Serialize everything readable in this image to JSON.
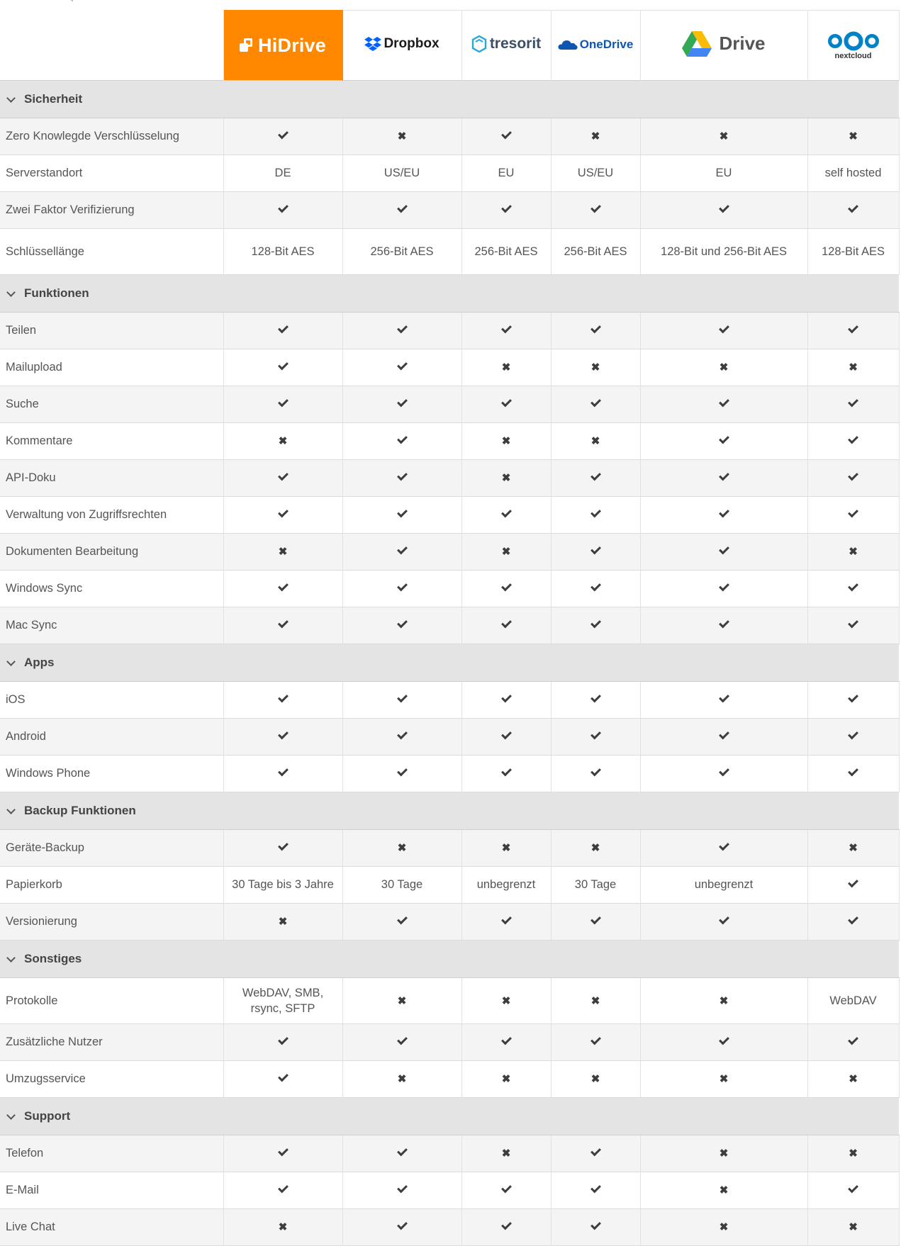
{
  "colors": {
    "hidrive_orange": "#ff8800",
    "section_bg": "#e4e4e4",
    "alt_row_bg": "#f4f4f4",
    "dropbox_blue": "#0061fe",
    "tresorit_cyan": "#28a7d8",
    "onedrive_blue": "#0f56b3",
    "nextcloud_blue": "#0082c9"
  },
  "providers": [
    {
      "key": "hidrive",
      "name": "HiDrive",
      "icon": "hidrive-logo-icon"
    },
    {
      "key": "dropbox",
      "name": "Dropbox",
      "icon": "dropbox-logo-icon"
    },
    {
      "key": "tresorit",
      "name": "tresorit",
      "icon": "tresorit-logo-icon"
    },
    {
      "key": "onedrive",
      "name": "OneDrive",
      "icon": "onedrive-cloud-icon"
    },
    {
      "key": "drive",
      "name": "Drive",
      "icon": "google-drive-triangle-icon"
    },
    {
      "key": "nextcloud",
      "name": "nextcloud",
      "icon": "nextcloud-circles-icon"
    }
  ],
  "legend": {
    "yes": "check-icon",
    "no": "cross-icon",
    "cross_glyph": "✖"
  },
  "sections": [
    {
      "title": "Sicherheit",
      "rows": [
        {
          "label": "Zero Knowlegde Verschlüsselung",
          "values": [
            "yes",
            "no",
            "yes",
            "no",
            "no",
            "no"
          ]
        },
        {
          "label": "Serverstandort",
          "values": [
            "DE",
            "US/EU",
            "EU",
            "US/EU",
            "EU",
            "self hosted"
          ]
        },
        {
          "label": "Zwei Faktor Verifizierung",
          "values": [
            "yes",
            "yes",
            "yes",
            "yes",
            "yes",
            "yes"
          ]
        },
        {
          "label": "Schlüssellänge",
          "values": [
            "128-Bit AES",
            "256-Bit AES",
            "256-Bit AES",
            "256-Bit AES",
            "128-Bit und 256-Bit AES",
            "128-Bit AES"
          ]
        }
      ]
    },
    {
      "title": "Funktionen",
      "rows": [
        {
          "label": "Teilen",
          "values": [
            "yes",
            "yes",
            "yes",
            "yes",
            "yes",
            "yes"
          ]
        },
        {
          "label": "Mailupload",
          "values": [
            "yes",
            "yes",
            "no",
            "no",
            "no",
            "no"
          ]
        },
        {
          "label": "Suche",
          "values": [
            "yes",
            "yes",
            "yes",
            "yes",
            "yes",
            "yes"
          ]
        },
        {
          "label": "Kommentare",
          "values": [
            "no",
            "yes",
            "no",
            "no",
            "yes",
            "yes"
          ]
        },
        {
          "label": "API-Doku",
          "values": [
            "yes",
            "yes",
            "no",
            "yes",
            "yes",
            "yes"
          ]
        },
        {
          "label": "Verwaltung von Zugriffsrechten",
          "values": [
            "yes",
            "yes",
            "yes",
            "yes",
            "yes",
            "yes"
          ]
        },
        {
          "label": "Dokumenten Bearbeitung",
          "values": [
            "no",
            "yes",
            "no",
            "yes",
            "yes",
            "no"
          ]
        },
        {
          "label": "Windows Sync",
          "values": [
            "yes",
            "yes",
            "yes",
            "yes",
            "yes",
            "yes"
          ]
        },
        {
          "label": "Mac Sync",
          "values": [
            "yes",
            "yes",
            "yes",
            "yes",
            "yes",
            "yes"
          ]
        }
      ]
    },
    {
      "title": "Apps",
      "rows": [
        {
          "label": "iOS",
          "values": [
            "yes",
            "yes",
            "yes",
            "yes",
            "yes",
            "yes"
          ]
        },
        {
          "label": "Android",
          "values": [
            "yes",
            "yes",
            "yes",
            "yes",
            "yes",
            "yes"
          ]
        },
        {
          "label": "Windows Phone",
          "values": [
            "yes",
            "yes",
            "yes",
            "yes",
            "yes",
            "yes"
          ]
        }
      ]
    },
    {
      "title": "Backup Funktionen",
      "rows": [
        {
          "label": "Geräte-Backup",
          "values": [
            "yes",
            "no",
            "no",
            "no",
            "yes",
            "no"
          ]
        },
        {
          "label": "Papierkorb",
          "values": [
            "30 Tage bis 3 Jahre",
            "30 Tage",
            "unbegrenzt",
            "30 Tage",
            "unbegrenzt",
            "yes"
          ]
        },
        {
          "label": "Versionierung",
          "values": [
            "no",
            "yes",
            "yes",
            "yes",
            "yes",
            "yes"
          ]
        }
      ]
    },
    {
      "title": "Sonstiges",
      "rows": [
        {
          "label": "Protokolle",
          "values": [
            "WebDAV, SMB, rsync, SFTP",
            "no",
            "no",
            "no",
            "no",
            "WebDAV"
          ]
        },
        {
          "label": "Zusätzliche Nutzer",
          "values": [
            "yes",
            "yes",
            "yes",
            "yes",
            "yes",
            "yes"
          ]
        },
        {
          "label": "Umzugsservice",
          "values": [
            "yes",
            "no",
            "no",
            "no",
            "no",
            "no"
          ]
        }
      ]
    },
    {
      "title": "Support",
      "rows": [
        {
          "label": "Telefon",
          "values": [
            "yes",
            "yes",
            "no",
            "yes",
            "no",
            "no"
          ]
        },
        {
          "label": "E-Mail",
          "values": [
            "yes",
            "yes",
            "yes",
            "yes",
            "no",
            "yes"
          ]
        },
        {
          "label": "Live Chat",
          "values": [
            "no",
            "yes",
            "yes",
            "yes",
            "no",
            "no"
          ]
        }
      ]
    }
  ]
}
